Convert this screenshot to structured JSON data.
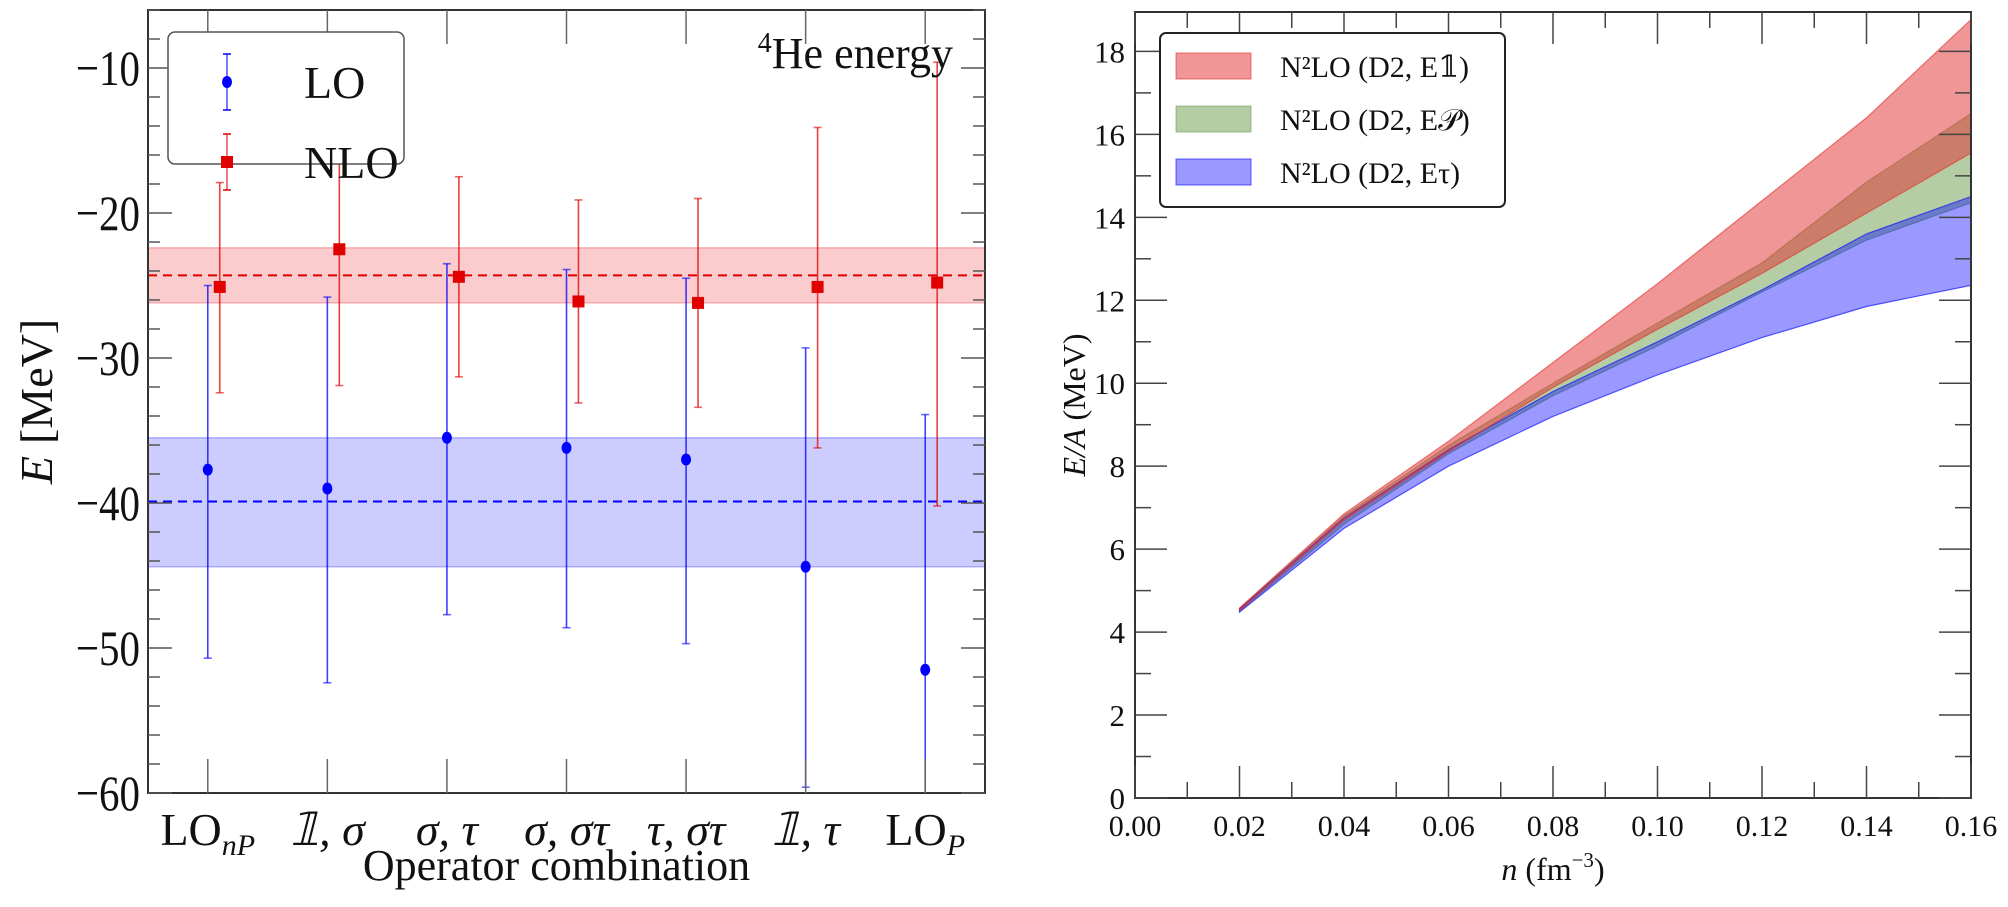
{
  "chart_data": [
    {
      "type": "scatter",
      "subtype": "errorbar",
      "title": "⁴He energy",
      "title_parts": {
        "sup": "4",
        "text": "He energy"
      },
      "xlabel": "Operator combination",
      "ylabel": {
        "var": "E",
        "unit": "[MeV]"
      },
      "xlim": [
        0.5,
        7.5
      ],
      "ylim": [
        -60,
        -6
      ],
      "yticks": [
        -60,
        -50,
        -40,
        -30,
        -20,
        -10
      ],
      "ytick_labels": [
        "−60",
        "−50",
        "−40",
        "−30",
        "−20",
        "−10"
      ],
      "categories": [
        {
          "base": "LO",
          "sub": "nP"
        },
        {
          "base": "𝟙, σ",
          "sub": ""
        },
        {
          "base": "σ, τ",
          "sub": ""
        },
        {
          "base": "σ, στ",
          "sub": ""
        },
        {
          "base": "τ, στ",
          "sub": ""
        },
        {
          "base": "𝟙, τ",
          "sub": ""
        },
        {
          "base": "LO",
          "sub": "P"
        }
      ],
      "legend": {
        "placement": "top-left",
        "entries": [
          "LO",
          "NLO"
        ]
      },
      "series": [
        {
          "name": "LO",
          "color": "#0000ff",
          "marker": "circle",
          "x_offset": 0,
          "values": [
            -37.7,
            -39.0,
            -35.5,
            -36.2,
            -37.0,
            -44.4,
            -51.5
          ],
          "err_upper": [
            -25.0,
            -25.8,
            -23.5,
            -23.9,
            -24.5,
            -29.3,
            -33.9
          ],
          "err_lower": [
            -50.7,
            -52.4,
            -47.7,
            -48.6,
            -49.7,
            -59.6,
            -69.0
          ],
          "band": {
            "mean": -39.9,
            "low": -44.4,
            "high": -35.5,
            "color": "#0000ff"
          }
        },
        {
          "name": "NLO",
          "color": "#e00000",
          "marker": "square",
          "x_offset": 0.1,
          "values": [
            -25.1,
            -22.5,
            -24.4,
            -26.1,
            -26.2,
            -25.1,
            -24.8
          ],
          "err_upper": [
            -17.9,
            -12.8,
            -17.5,
            -19.1,
            -19.0,
            -14.1,
            -9.6
          ],
          "err_lower": [
            -32.4,
            -31.9,
            -31.3,
            -33.1,
            -33.4,
            -36.2,
            -40.2
          ],
          "band": {
            "mean": -24.3,
            "low": -26.2,
            "high": -22.4,
            "color": "#e8000b"
          }
        }
      ]
    },
    {
      "type": "area",
      "subtype": "band",
      "xlabel": {
        "var": "n",
        "unit": "(fm",
        "sup": "−3",
        "close": ")"
      },
      "ylabel": {
        "var": "E/A",
        "unit": "(MeV)"
      },
      "xlim": [
        0,
        0.16
      ],
      "ylim": [
        0,
        18.95
      ],
      "xticks": [
        0,
        0.02,
        0.04,
        0.06,
        0.08,
        0.1,
        0.12,
        0.14,
        0.16
      ],
      "xtick_labels": [
        "0.00",
        "0.02",
        "0.04",
        "0.06",
        "0.08",
        "0.10",
        "0.12",
        "0.14",
        "0.16"
      ],
      "yticks": [
        0,
        2,
        4,
        6,
        8,
        10,
        12,
        14,
        16,
        18
      ],
      "ytick_labels": [
        "0",
        "2",
        "4",
        "6",
        "8",
        "10",
        "12",
        "14",
        "16",
        "18"
      ],
      "legend": {
        "placement": "top-left"
      },
      "x": [
        0.02,
        0.04,
        0.06,
        0.08,
        0.1,
        0.12,
        0.14,
        0.16
      ],
      "series": [
        {
          "name": "N²LO (D2, E𝟙)",
          "color": "#e12d2d",
          "upper": [
            4.58,
            6.85,
            8.6,
            10.5,
            12.4,
            14.4,
            16.4,
            18.77
          ],
          "lower": [
            4.52,
            6.7,
            8.35,
            9.9,
            11.3,
            12.65,
            14.1,
            15.55
          ]
        },
        {
          "name": "N²LO (D2, E𝒫)",
          "color": "#6b9b4b",
          "upper": [
            4.57,
            6.8,
            8.5,
            10.0,
            11.45,
            12.9,
            14.85,
            16.5
          ],
          "lower": [
            4.5,
            6.6,
            8.3,
            9.7,
            10.9,
            12.2,
            13.45,
            14.35
          ]
        },
        {
          "name": "N²LO (D2, Eτ)",
          "color": "#0000ff",
          "upper": [
            4.56,
            6.75,
            8.4,
            9.8,
            11.0,
            12.25,
            13.6,
            14.5
          ],
          "lower": [
            4.48,
            6.5,
            8.0,
            9.2,
            10.2,
            11.1,
            11.85,
            12.36
          ]
        }
      ]
    }
  ]
}
